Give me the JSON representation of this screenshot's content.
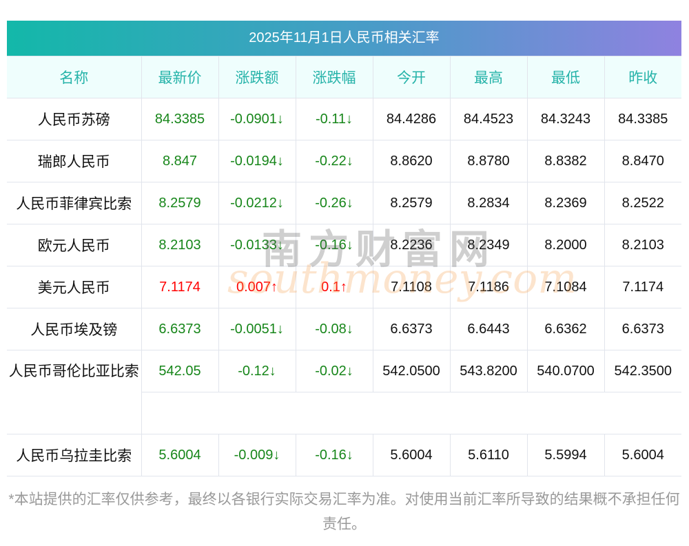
{
  "title": "2025年11月1日人民币相关汇率",
  "headers": [
    "名称",
    "最新价",
    "涨跌额",
    "涨跌幅",
    "今开",
    "最高",
    "最低",
    "昨收"
  ],
  "rows": [
    {
      "name": "人民币苏磅",
      "last": "84.3385",
      "chg": "-0.0901↓",
      "pct": "-0.11↓",
      "open": "84.4286",
      "high": "84.4523",
      "low": "84.3243",
      "prev": "84.3385",
      "dir": "down"
    },
    {
      "name": "瑞郎人民币",
      "last": "8.847",
      "chg": "-0.0194↓",
      "pct": "-0.22↓",
      "open": "8.8620",
      "high": "8.8780",
      "low": "8.8382",
      "prev": "8.8470",
      "dir": "down"
    },
    {
      "name": "人民币菲律宾比索",
      "last": "8.2579",
      "chg": "-0.0212↓",
      "pct": "-0.26↓",
      "open": "8.2579",
      "high": "8.2834",
      "low": "8.2369",
      "prev": "8.2522",
      "dir": "down"
    },
    {
      "name": "欧元人民币",
      "last": "8.2103",
      "chg": "-0.0133↓",
      "pct": "-0.16↓",
      "open": "8.2236",
      "high": "8.2349",
      "low": "8.2000",
      "prev": "8.2103",
      "dir": "down"
    },
    {
      "name": "美元人民币",
      "last": "7.1174",
      "chg": "0.007↑",
      "pct": "0.1↑",
      "open": "7.1108",
      "high": "7.1186",
      "low": "7.1084",
      "prev": "7.1174",
      "dir": "up"
    },
    {
      "name": "人民币埃及镑",
      "last": "6.6373",
      "chg": "-0.0051↓",
      "pct": "-0.08↓",
      "open": "6.6373",
      "high": "6.6443",
      "low": "6.6362",
      "prev": "6.6373",
      "dir": "down"
    },
    {
      "name": "人民币哥伦比亚比索",
      "last": "542.05",
      "chg": "-0.12↓",
      "pct": "-0.02↓",
      "open": "542.0500",
      "high": "543.8200",
      "low": "540.0700",
      "prev": "542.3500",
      "dir": "down"
    },
    {
      "name": "人民币乌拉圭比索",
      "last": "5.6004",
      "chg": "-0.009↓",
      "pct": "-0.16↓",
      "open": "5.6004",
      "high": "5.6110",
      "low": "5.5994",
      "prev": "5.6004",
      "dir": "down"
    }
  ],
  "watermark": {
    "cn": "南方财富网",
    "en": "southmoney.com"
  },
  "footer": "*本站提供的汇率仅供参考，最终以各银行实际交易汇率为准。对使用当前汇率所导致的结果概不承担任何责任。",
  "colors": {
    "up": "#ff0000",
    "down": "#17861a",
    "header_text": "#26b3a9"
  }
}
